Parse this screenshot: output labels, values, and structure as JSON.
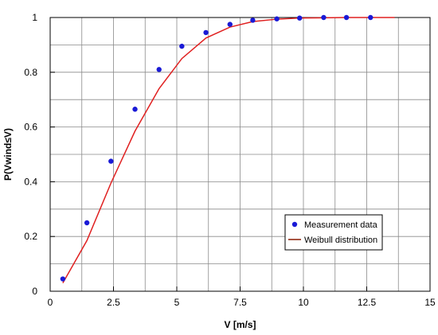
{
  "chart_data": {
    "type": "scatter",
    "xlabel": "V [m/s]",
    "ylabel": "P(Vwind≤V)",
    "xlim": [
      0,
      15
    ],
    "ylim": [
      0,
      1
    ],
    "xticks": [
      0,
      2.5,
      5,
      7.5,
      10,
      12.5,
      15
    ],
    "xtick_labels": [
      "0",
      "2.5",
      "5",
      "7.5",
      "10",
      "12.5",
      "15"
    ],
    "yticks": [
      0,
      0.2,
      0.4,
      0.6,
      0.8,
      1
    ],
    "ytick_labels": [
      "0",
      "0.2",
      "0.4",
      "0.6",
      "0.8",
      "1"
    ],
    "grid": true,
    "legend_position": "bottom-right",
    "series": [
      {
        "name": "Measurement data",
        "kind": "scatter",
        "color": "#1a1ad6",
        "x": [
          0.5,
          1.45,
          2.4,
          3.35,
          4.3,
          5.2,
          6.15,
          7.1,
          8.0,
          8.95,
          9.85,
          10.8,
          11.7,
          12.65
        ],
        "y": [
          0.045,
          0.25,
          0.475,
          0.665,
          0.81,
          0.895,
          0.945,
          0.975,
          0.99,
          0.995,
          0.998,
          1.0,
          1.0,
          1.0
        ]
      },
      {
        "name": "Weibull distribution",
        "kind": "line",
        "color": "#e02020",
        "legend_color": "#8b1a00",
        "x": [
          0.5,
          1.45,
          2.4,
          3.35,
          4.3,
          5.2,
          6.15,
          7.1,
          8.0,
          8.95,
          9.85,
          10.8,
          11.7,
          12.65,
          13.6
        ],
        "y": [
          0.03,
          0.185,
          0.395,
          0.585,
          0.74,
          0.85,
          0.925,
          0.965,
          0.985,
          0.994,
          0.998,
          0.999,
          1.0,
          1.0,
          1.0
        ]
      }
    ]
  }
}
